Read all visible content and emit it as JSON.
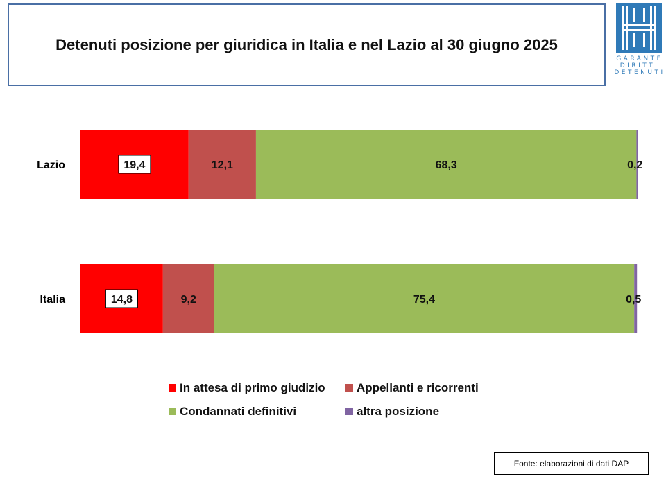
{
  "logo": {
    "lines": [
      "GARANTE",
      "DIRITTI",
      "DETENUTI"
    ],
    "color": "#2f7ab8"
  },
  "source_note": "Fonte: elaborazioni di dati DAP",
  "chart_data": {
    "type": "bar",
    "orientation": "horizontal",
    "stacked": true,
    "percent_stacked": true,
    "title": "Detenuti posizione per giuridica in Italia e nel Lazio al 30 giugno 2025",
    "categories": [
      "Lazio",
      "Italia"
    ],
    "series": [
      {
        "name": "In attesa di primo giudizio",
        "values": [
          19.4,
          14.8
        ],
        "labels": [
          "19,4",
          "14,8"
        ],
        "color": "#ff0000"
      },
      {
        "name": "Appellanti e ricorrenti",
        "values": [
          12.1,
          9.2
        ],
        "labels": [
          "12,1",
          "9,2"
        ],
        "color": "#c0504d"
      },
      {
        "name": "Condannati definitivi",
        "values": [
          68.3,
          75.4
        ],
        "labels": [
          "68,3",
          "75,4"
        ],
        "color": "#9bbb59"
      },
      {
        "name": "altra posizione",
        "values": [
          0.2,
          0.5
        ],
        "labels": [
          "0,2",
          "0,5"
        ],
        "color": "#8064a2"
      }
    ],
    "xlim": [
      0,
      100
    ],
    "xlabel": "",
    "ylabel": "",
    "grid": false,
    "legend_position": "bottom"
  }
}
